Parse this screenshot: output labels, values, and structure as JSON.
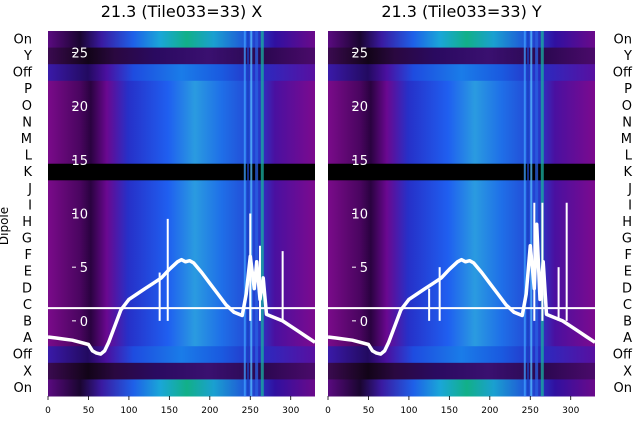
{
  "chart_data": [
    {
      "type": "line",
      "panel": "X",
      "title": "21.3 (Tile033=33) X",
      "ylabel": "Dipole",
      "dipole_labels_top_to_bottom": [
        "On",
        "Y",
        "Off",
        "P",
        "O",
        "N",
        "M",
        "L",
        "K",
        "J",
        "I",
        "H",
        "G",
        "F",
        "E",
        "D",
        "C",
        "B",
        "A",
        "Off",
        "X",
        "On"
      ],
      "xlim": [
        0,
        330
      ],
      "x_ticks": [
        "0",
        "50",
        "100",
        "150",
        "200",
        "250",
        "300"
      ],
      "ylim": [
        -7,
        27
      ],
      "y_ticks": [
        "0",
        "5",
        "10",
        "15",
        "20",
        "25"
      ],
      "series": [
        {
          "x": [
            0,
            10,
            20,
            30,
            40,
            50,
            55,
            60,
            65,
            70,
            75,
            80,
            90,
            100,
            110,
            120,
            130,
            140,
            150,
            160,
            165,
            170,
            175,
            180,
            190,
            200,
            210,
            220,
            230,
            240,
            245,
            250,
            255,
            258,
            262,
            266,
            270,
            280,
            290,
            300,
            310,
            320,
            330
          ],
          "y": [
            -1.5,
            -1.6,
            -1.7,
            -1.8,
            -2.0,
            -2.2,
            -2.8,
            -3.0,
            -3.1,
            -2.8,
            -2.0,
            -1.0,
            1.0,
            2.0,
            2.5,
            3.0,
            3.5,
            4.0,
            4.8,
            5.5,
            5.7,
            5.5,
            5.6,
            5.4,
            4.5,
            3.5,
            2.5,
            1.5,
            0.8,
            0.5,
            2.5,
            6.0,
            3.0,
            5.5,
            2.0,
            4.0,
            0.6,
            0.3,
            0.0,
            -0.5,
            -1.0,
            -1.5,
            -2.0
          ]
        }
      ],
      "spikes": [
        {
          "x": 138,
          "y": 4.5
        },
        {
          "x": 148,
          "y": 9.5
        },
        {
          "x": 250,
          "y": 10.0
        },
        {
          "x": 262,
          "y": 7.0
        },
        {
          "x": 290,
          "y": 6.5
        }
      ]
    },
    {
      "type": "line",
      "panel": "Y",
      "title": "21.3 (Tile033=33) Y",
      "dipole_labels_top_to_bottom": [
        "On",
        "Y",
        "Off",
        "P",
        "O",
        "N",
        "M",
        "L",
        "K",
        "J",
        "I",
        "H",
        "G",
        "F",
        "E",
        "D",
        "C",
        "B",
        "A",
        "Off",
        "X",
        "On"
      ],
      "xlim": [
        0,
        330
      ],
      "x_ticks": [
        "0",
        "50",
        "100",
        "150",
        "200",
        "250",
        "300"
      ],
      "ylim": [
        -7,
        27
      ],
      "y_ticks": [
        "0",
        "5",
        "10",
        "15",
        "20",
        "25"
      ],
      "series": [
        {
          "x": [
            0,
            10,
            20,
            30,
            40,
            50,
            55,
            60,
            65,
            70,
            75,
            80,
            90,
            100,
            110,
            120,
            130,
            140,
            150,
            160,
            165,
            170,
            175,
            180,
            190,
            200,
            210,
            220,
            230,
            240,
            245,
            250,
            255,
            258,
            262,
            266,
            270,
            280,
            290,
            300,
            310,
            320,
            330
          ],
          "y": [
            -1.5,
            -1.6,
            -1.7,
            -1.8,
            -2.0,
            -2.2,
            -2.8,
            -3.0,
            -3.1,
            -2.8,
            -2.0,
            -1.0,
            1.0,
            2.0,
            2.5,
            3.0,
            3.5,
            4.0,
            4.8,
            5.5,
            5.7,
            5.5,
            5.6,
            5.4,
            4.5,
            3.5,
            2.5,
            1.5,
            0.8,
            0.5,
            2.5,
            7.0,
            3.0,
            9.0,
            2.0,
            5.5,
            0.6,
            0.3,
            0.0,
            -0.5,
            -1.0,
            -1.5,
            -2.0
          ]
        }
      ],
      "spikes": [
        {
          "x": 125,
          "y": 3.0
        },
        {
          "x": 138,
          "y": 5.0
        },
        {
          "x": 255,
          "y": 11.0
        },
        {
          "x": 265,
          "y": 11.0
        },
        {
          "x": 285,
          "y": 5.0
        },
        {
          "x": 295,
          "y": 11.0
        }
      ]
    }
  ]
}
